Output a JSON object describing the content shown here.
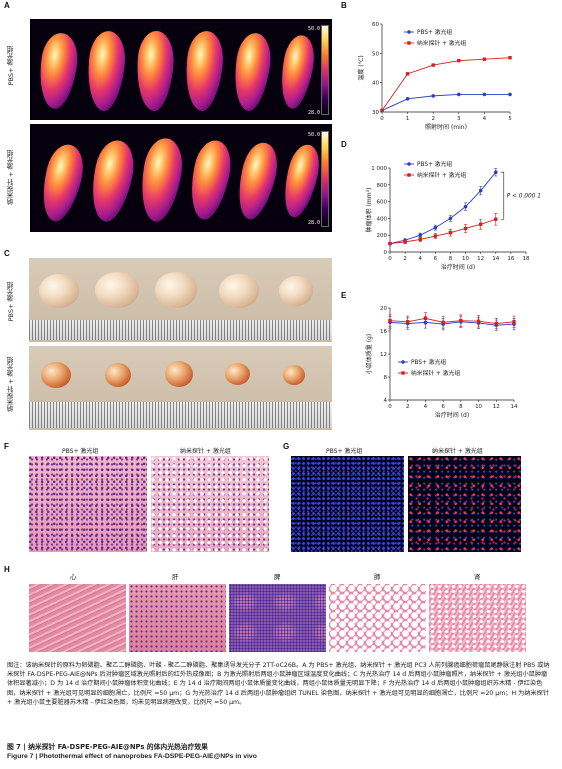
{
  "panels": {
    "A": {
      "label": "A",
      "row1_label": "PBS+ 激光组",
      "row2_label": "纳米探针 + 激光组",
      "scale_max": "50.0",
      "scale_min": "28.0"
    },
    "C": {
      "label": "C",
      "row1_label": "PBS+ 激光组",
      "row2_label": "纳米探针 + 激光组"
    },
    "F": {
      "label": "F",
      "col1": "PBS+ 激光组",
      "col2": "纳米探针 + 激光组"
    },
    "G": {
      "label": "G",
      "col1": "PBS+ 激光组",
      "col2": "纳米探针 + 激光组"
    },
    "H": {
      "label": "H",
      "organs": [
        "心",
        "肝",
        "脾",
        "肺",
        "肾"
      ]
    }
  },
  "chart_data": [
    {
      "panel": "B",
      "type": "line",
      "xlabel": "照射时间 (min)",
      "ylabel": "温度 (℃)",
      "x": [
        0,
        1,
        2,
        3,
        4,
        5
      ],
      "xticks": [
        "0",
        "1",
        "2",
        "3",
        "4",
        "5"
      ],
      "ylim": [
        30,
        60
      ],
      "yticks": [
        "30",
        "40",
        "50",
        "60"
      ],
      "legend_position": "top-right",
      "series": [
        {
          "name": "PBS+ 激光组",
          "color": "#2b3fc4",
          "marker": "circle",
          "values": [
            30.5,
            34.5,
            35.5,
            36.0,
            36.0,
            36.0
          ]
        },
        {
          "name": "纳米探针 + 激光组",
          "color": "#d32020",
          "marker": "square",
          "values": [
            30.5,
            43.0,
            46.0,
            47.5,
            48.0,
            48.5
          ]
        }
      ]
    },
    {
      "panel": "D",
      "type": "line",
      "xlabel": "治疗时间 (d)",
      "ylabel": "肿瘤体积 (mm³)",
      "x": [
        0,
        2,
        4,
        6,
        8,
        10,
        12,
        14,
        16,
        18
      ],
      "xticks": [
        "0",
        "2",
        "4",
        "6",
        "8",
        "10",
        "12",
        "14",
        "16",
        "18"
      ],
      "ylim": [
        0,
        1000
      ],
      "yticks": [
        "0",
        "200",
        "400",
        "600",
        "800",
        "1 000"
      ],
      "legend_position": "top-left",
      "annotation": "P < 0.000 1",
      "series": [
        {
          "name": "PBS+ 激光组",
          "color": "#2b3fc4",
          "marker": "circle",
          "x": [
            0,
            2,
            4,
            6,
            8,
            10,
            12,
            14
          ],
          "values": [
            100,
            140,
            200,
            290,
            400,
            540,
            730,
            950
          ],
          "err": [
            15,
            20,
            25,
            30,
            35,
            45,
            50,
            45
          ]
        },
        {
          "name": "纳米探针 + 激光组",
          "color": "#d32020",
          "marker": "square",
          "x": [
            0,
            2,
            4,
            6,
            8,
            10,
            12,
            14
          ],
          "values": [
            100,
            120,
            150,
            190,
            230,
            280,
            330,
            390
          ],
          "err": [
            15,
            20,
            25,
            30,
            40,
            50,
            60,
            70
          ]
        }
      ]
    },
    {
      "panel": "E",
      "type": "line",
      "xlabel": "治疗时间 (d)",
      "ylabel": "小鼠体质量 (g)",
      "x": [
        0,
        2,
        4,
        6,
        8,
        10,
        12,
        14
      ],
      "xticks": [
        "0",
        "2",
        "4",
        "6",
        "8",
        "10",
        "12",
        "14"
      ],
      "ylim": [
        4,
        20
      ],
      "yticks": [
        "4",
        "8",
        "12",
        "16",
        "20"
      ],
      "legend_position": "center-left",
      "series": [
        {
          "name": "PBS+ 激光组",
          "color": "#2b3fc4",
          "marker": "circle",
          "values": [
            17.5,
            17.3,
            17.5,
            17.2,
            17.6,
            17.4,
            17.0,
            17.2
          ],
          "err": [
            1.0,
            1.0,
            1.0,
            1.0,
            1.0,
            1.0,
            0.9,
            1.0
          ]
        },
        {
          "name": "纳米探针 + 激光组",
          "color": "#d32020",
          "marker": "square",
          "values": [
            17.8,
            17.6,
            18.2,
            17.5,
            17.8,
            17.7,
            17.3,
            17.6
          ],
          "err": [
            1.0,
            1.0,
            1.0,
            1.0,
            1.0,
            1.0,
            0.9,
            1.0
          ]
        }
      ]
    }
  ],
  "caption": {
    "note": "图注：该纳米探针的原料为卵磷脂、聚乙二醇磷脂、叶酸 - 聚乙二醇磷脂、聚集诱导发光分子 2TT-oC26B。A 为 PBS+ 激光组、纳米探针 + 激光组 PC3 人前列腺癌细胞荷瘤鼠尾静脉注射 PBS 或纳米探针 FA-DSPE-PEG-AIE@NPs 后对肿瘤区域激光照射后的红外热成像图；B 为激光照射后两组小鼠肿瘤区域温度变化曲线；C 为光热治疗 14 d 后两组小鼠肿瘤照片，纳米探针 + 激光组小鼠肿瘤体积显著减小；D 为 14 d 治疗期间小鼠肿瘤体积变化曲线；E 为 14 d 治疗期间两组小鼠体质量变化曲线，两组小鼠体质量无明显下降；F 为光热治疗 14 d 后两组小鼠肿瘤组织苏木精 - 伊红染色图，纳米探针 + 激光组可见明显的细胞凋亡，比例尺 =50 μm；G 为光热治疗 14 d 后两组小鼠肿瘤组织 TUNEL 染色图，纳米探针 + 激光组可见明显的细胞凋亡，比例尺 =20 μm；H 为纳米探针 + 激光组小鼠主要脏器苏木精 - 伊红染色图，均未见明显病理改变，比例尺 =50 μm。",
    "title_cn": "图 7 | 纳米探针 FA-DSPE-PEG-AIE@NPs 的体内光热治疗效果",
    "title_en": "Figure 7 | Photothermal effect of nanoprobes FA-DSPE-PEG-AIE@NPs in vivo"
  }
}
